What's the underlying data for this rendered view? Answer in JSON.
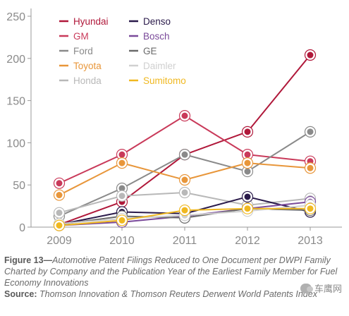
{
  "chart_data": {
    "type": "line",
    "x": [
      "2009",
      "2010",
      "2011",
      "2012",
      "2013"
    ],
    "yticks": [
      "0",
      "50",
      "100",
      "150",
      "200",
      "250"
    ],
    "ylim": [
      0,
      250
    ],
    "grid": false,
    "legend_placement": "top-left",
    "series": [
      {
        "name": "Hyundai",
        "color": "#b0183a",
        "values": [
          3,
          30,
          86,
          113,
          204
        ]
      },
      {
        "name": "GM",
        "color": "#c93a5a",
        "values": [
          52,
          86,
          132,
          86,
          78
        ]
      },
      {
        "name": "Ford",
        "color": "#8a8a8a",
        "values": [
          13,
          46,
          86,
          66,
          113
        ]
      },
      {
        "name": "Toyota",
        "color": "#e8963a",
        "values": [
          38,
          76,
          56,
          76,
          70
        ]
      },
      {
        "name": "Honda",
        "color": "#b8b8b8",
        "values": [
          17,
          37,
          41,
          26,
          34
        ]
      },
      {
        "name": "Denso",
        "color": "#2a1a4a",
        "values": [
          3,
          18,
          16,
          36,
          18
        ]
      },
      {
        "name": "Bosch",
        "color": "#7a4a9a",
        "values": [
          2,
          6,
          13,
          22,
          30
        ]
      },
      {
        "name": "GE",
        "color": "#6a6a6a",
        "values": [
          3,
          13,
          11,
          22,
          20
        ]
      },
      {
        "name": "Daimler",
        "color": "#d0d0d0",
        "values": [
          4,
          10,
          14,
          19,
          26
        ]
      },
      {
        "name": "Sumitomo",
        "color": "#f0b820",
        "values": [
          2,
          8,
          20,
          22,
          22
        ]
      }
    ]
  },
  "caption": {
    "figure_label": "Figure 13—",
    "figure_text": "Automotive Patent Filings Reduced to One Document per DWPI Family Charted by Company and the Publication Year of the Earliest Family Member for Fuel Economy Innovations",
    "source_label": "Source:",
    "source_text": " Thomson Innovation & Thomson Reuters Derwent World Patents Index"
  },
  "watermark": {
    "text": "车鹰网"
  }
}
